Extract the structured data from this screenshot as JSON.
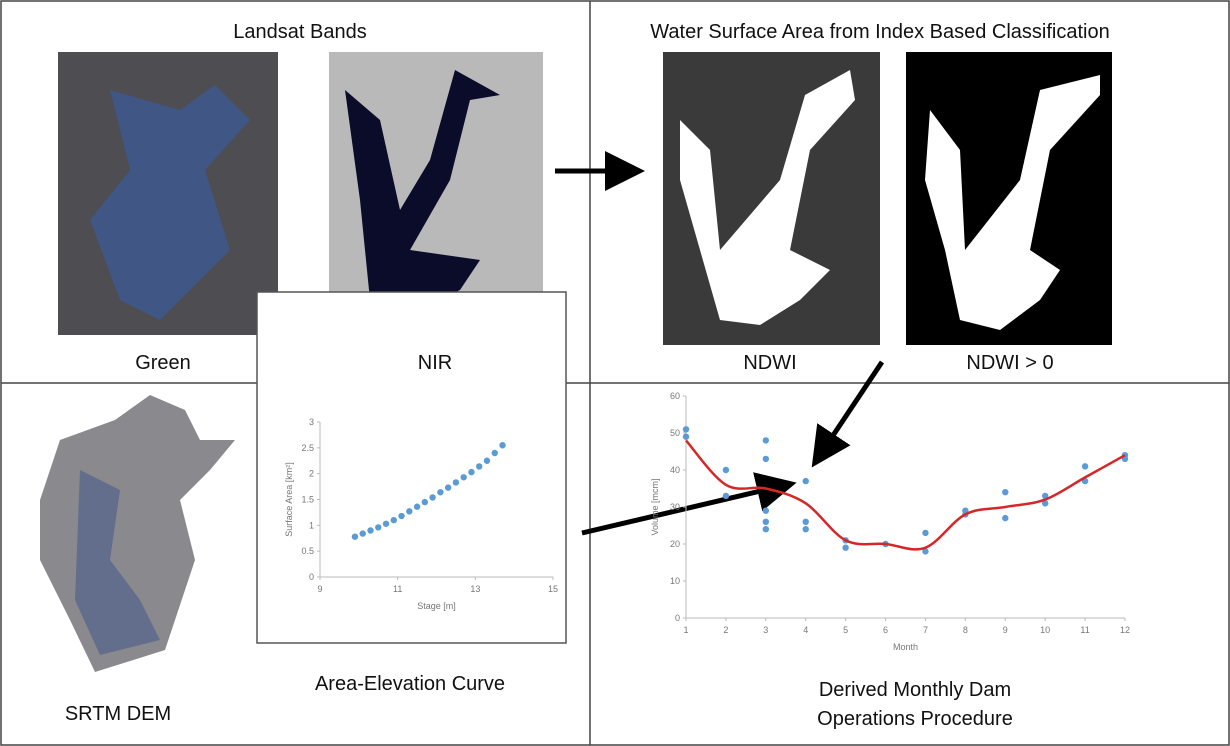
{
  "panels": {
    "landsat": {
      "title": "Landsat Bands",
      "labels": [
        "Green",
        "NIR"
      ]
    },
    "water": {
      "title": "Water Surface Area from Index Based Classification",
      "labels": [
        "NDWI",
        "NDWI > 0"
      ]
    },
    "dem": {
      "label": "SRTM DEM"
    },
    "curve": {
      "caption": "Area-Elevation Curve"
    },
    "operations": {
      "caption": [
        "Derived Monthly Dam",
        "Operations Procedure"
      ]
    }
  },
  "chart_data": [
    {
      "type": "scatter",
      "xlabel": "Stage [m]",
      "ylabel": "Surface Area [km²]",
      "series": [
        {
          "type": "scatter",
          "color": "#5b9bd5",
          "x": [
            9.9,
            10.1,
            10.3,
            10.5,
            10.7,
            10.9,
            11.1,
            11.3,
            11.5,
            11.7,
            11.9,
            12.1,
            12.3,
            12.5,
            12.7,
            12.9,
            13.1,
            13.3,
            13.5,
            13.7
          ],
          "values": [
            0.78,
            0.84,
            0.9,
            0.96,
            1.03,
            1.1,
            1.18,
            1.27,
            1.36,
            1.45,
            1.54,
            1.64,
            1.73,
            1.83,
            1.93,
            2.03,
            2.14,
            2.25,
            2.4,
            2.55
          ]
        }
      ],
      "xlim": [
        9,
        15
      ],
      "ylim": [
        0,
        3
      ],
      "xticks": [
        9,
        11,
        13,
        15
      ],
      "yticks": [
        0,
        0.5,
        1,
        1.5,
        2,
        2.5,
        3
      ]
    },
    {
      "type": "line",
      "xlabel": "Month",
      "ylabel": "Volume [mcm]",
      "series": [
        {
          "type": "scatter",
          "color": "#5b9bd5",
          "x": [
            1,
            1,
            2,
            2,
            3,
            3,
            3,
            3,
            3,
            4,
            4,
            4,
            5,
            5,
            6,
            7,
            7,
            8,
            8,
            9,
            9,
            10,
            10,
            11,
            11,
            12,
            12
          ],
          "values": [
            51,
            49,
            40,
            33,
            48,
            43,
            29,
            26,
            24,
            37,
            26,
            24,
            21,
            19,
            20,
            23,
            18,
            29,
            28,
            34,
            27,
            33,
            31,
            41,
            37,
            44,
            43
          ]
        },
        {
          "type": "line",
          "color": "#d62728",
          "x": [
            1,
            2,
            3,
            4,
            5,
            6,
            7,
            8,
            9,
            10,
            11,
            12
          ],
          "values": [
            48,
            36,
            35,
            31,
            21,
            20,
            19,
            28,
            30,
            32,
            38,
            44
          ]
        }
      ],
      "xlim": [
        1,
        12
      ],
      "ylim": [
        0,
        60
      ],
      "xticks": [
        1,
        2,
        3,
        4,
        5,
        6,
        7,
        8,
        9,
        10,
        11,
        12
      ],
      "yticks": [
        0,
        10,
        20,
        30,
        40,
        50,
        60
      ]
    }
  ]
}
